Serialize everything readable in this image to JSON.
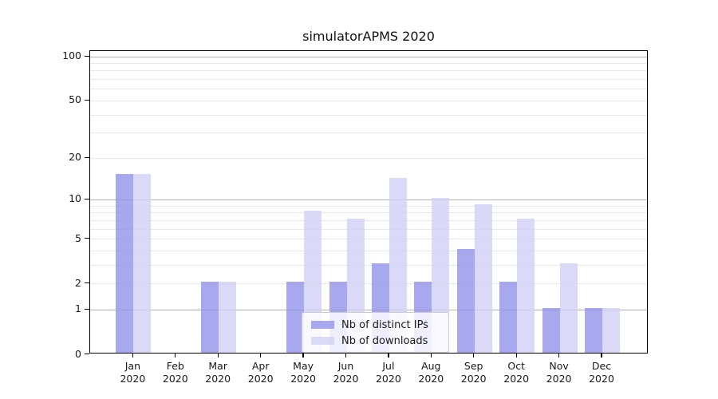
{
  "title": "simulatorAPMS 2020",
  "chart_data": {
    "type": "bar",
    "title": "simulatorAPMS 2020",
    "categories": [
      "Jan 2020",
      "Feb 2020",
      "Mar 2020",
      "Apr 2020",
      "May 2020",
      "Jun 2020",
      "Jul 2020",
      "Aug 2020",
      "Sep 2020",
      "Oct 2020",
      "Nov 2020",
      "Dec 2020"
    ],
    "series": [
      {
        "name": "Nb of distinct IPs",
        "color": "rgba(146,146,235,0.8)",
        "color_on_white": "#a8a8ef",
        "values": [
          15,
          0,
          2,
          0,
          2,
          2,
          3,
          2,
          4,
          2,
          1,
          1
        ]
      },
      {
        "name": "Nb of downloads",
        "color": "rgba(209,209,246,0.8)",
        "color_on_white": "#dadaf8",
        "values": [
          15,
          0,
          2,
          0,
          8,
          7,
          14,
          10,
          9,
          7,
          3,
          1
        ]
      }
    ],
    "xlabel": "",
    "ylabel": "",
    "yscale": "log10(value+1)",
    "ylim": [
      0,
      110
    ],
    "y_ticks": [
      0,
      1,
      2,
      5,
      10,
      20,
      50,
      100
    ],
    "y_major_gridline_values": [
      1,
      10,
      100
    ],
    "y_minor_gridline_values": [
      2,
      3,
      4,
      5,
      6,
      7,
      8,
      9,
      20,
      30,
      40,
      50,
      60,
      70,
      80,
      90
    ],
    "grid": true,
    "legend_position": "lower center inside plot"
  },
  "colors": {
    "background": "#ffffff",
    "spine": "#000000",
    "major_gridline": "#b2b2b2",
    "minor_gridline": "#e8e8e8",
    "text": "#1a1a1a",
    "legend_border": "#cccccc"
  }
}
